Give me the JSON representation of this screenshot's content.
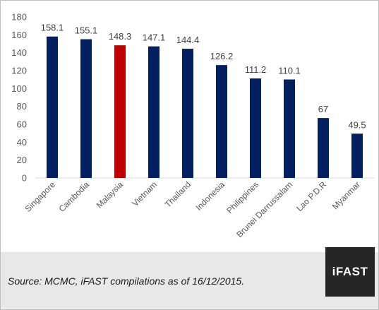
{
  "chart_data": {
    "type": "bar",
    "categories": [
      "Singapore",
      "Cambodia",
      "Malaysia",
      "Vietnam",
      "Thailand",
      "Indonesia",
      "Philippines",
      "Brunei Darrussalam",
      "Lao P.D.R",
      "Myanmar"
    ],
    "values": [
      158.1,
      155.1,
      148.3,
      147.1,
      144.4,
      126.2,
      111.2,
      110.1,
      67,
      49.5
    ],
    "data_labels": [
      "158.1",
      "155.1",
      "148.3",
      "147.1",
      "144.4",
      "126.2",
      "111.2",
      "110.1",
      "67",
      "49.5"
    ],
    "ylim": [
      0,
      180
    ],
    "yticks": [
      0,
      20,
      40,
      60,
      80,
      100,
      120,
      140,
      160,
      180
    ],
    "grid": false,
    "legend": "none",
    "bar_color": "#002060",
    "highlight_color": "#c00000",
    "highlight_category": "Malaysia"
  },
  "footer": {
    "source": "Source: MCMC, iFAST compilations as of 16/12/2015.",
    "logo_text": "iFAST"
  }
}
